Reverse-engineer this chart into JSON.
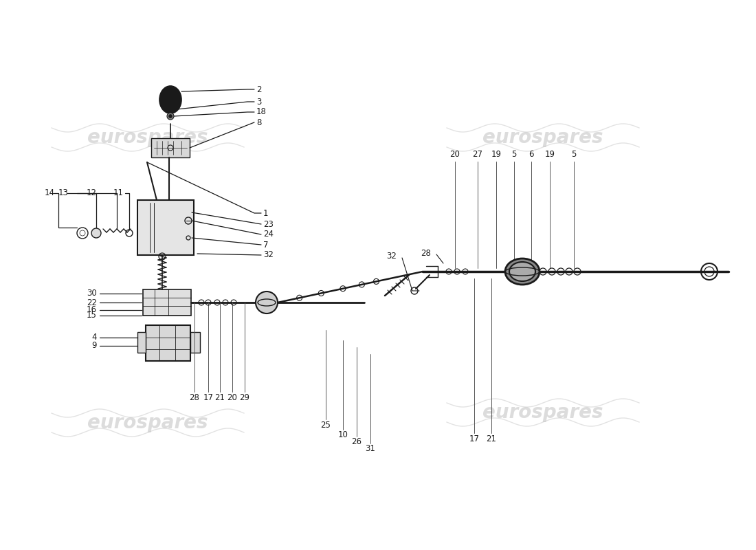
{
  "bg": "#ffffff",
  "lc": "#1a1a1a",
  "wc": "#c0c0c0",
  "wfs": 20,
  "fs": 8.5,
  "watermark": "eurospares",
  "knob_color": "#1a1a1a",
  "housing_color": "#e8e8e8",
  "bracket_color": "#e0e0e0"
}
